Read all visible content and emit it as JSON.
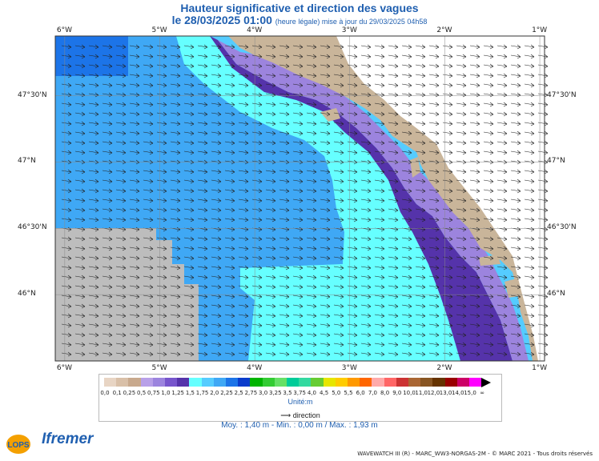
{
  "header": {
    "title": "Hauteur significative et direction des vagues",
    "date": "le 28/03/2025 01:00",
    "subtitle": "(heure légale) mise à jour du 29/03/2025 04h58"
  },
  "map": {
    "lon_labels": [
      "6°W",
      "5°W",
      "4°W",
      "3°W",
      "2°W",
      "1°W"
    ],
    "lat_labels": [
      "47°30'N",
      "47°N",
      "46°30'N",
      "46°N"
    ],
    "lon_range": [
      -6.1,
      -0.95
    ],
    "lat_range": [
      45.5,
      47.95
    ],
    "land_color": "#c9b59a",
    "nodata_color": "#bdbdbd"
  },
  "legend": {
    "labels": [
      "0,0",
      "0,1",
      "0,25",
      "0,5",
      "0,75",
      "1,0",
      "1,25",
      "1,5",
      "1,75",
      "2,0",
      "2,25",
      "2,5",
      "2,75",
      "3,0",
      "3,25",
      "3,5",
      "3,75",
      "4,0",
      "4,5",
      "5,0",
      "5,5",
      "6,0",
      "7,0",
      "8,0",
      "9,0",
      "10,0",
      "11,0",
      "12,0",
      "13,0",
      "14,0",
      "15,0",
      "∞"
    ],
    "colors": [
      "#e8d5c4",
      "#d9c0a8",
      "#c8a98d",
      "#b8a0e8",
      "#9c84de",
      "#7755cc",
      "#5533aa",
      "#66ffff",
      "#55ccff",
      "#3fa8f5",
      "#1c74e8",
      "#0a3ccc",
      "#00b400",
      "#33cc33",
      "#66e066",
      "#00cc99",
      "#33d9a0",
      "#66cc33",
      "#e6e600",
      "#ffcc00",
      "#ff9900",
      "#ff6600",
      "#ffaaaa",
      "#ff6666",
      "#cc3333",
      "#aa6633",
      "#885522",
      "#663300",
      "#990000",
      "#cc0066",
      "#ff00ff",
      "#000000"
    ],
    "unit": "Unité:m",
    "direction": "direction"
  },
  "stats": {
    "text": "Moy. : 1,40 m   -   Min. : 0,00 m / Max. : 1,93 m"
  },
  "footer": {
    "credit": "WAVEWATCH III (R) - MARC_WW3-NORGAS-2M - © MARC 2021 - Tous droits réservés",
    "logo_lops": "LOPS",
    "logo_ifremer": "Ifremer"
  }
}
